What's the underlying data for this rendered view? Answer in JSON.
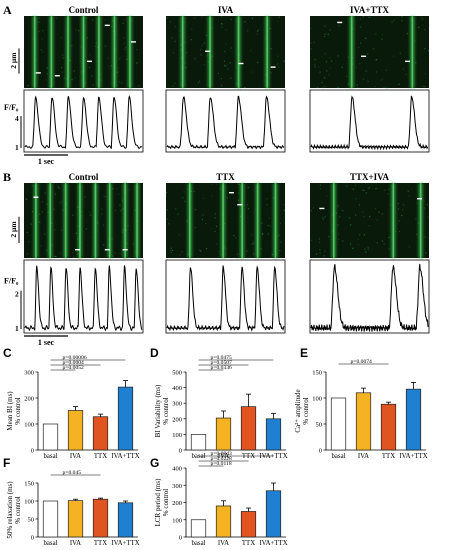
{
  "colors": {
    "green": "#39d353",
    "dark": "#0a1a0a",
    "basal": "#ffffff",
    "iva": "#f5b324",
    "ttx": "#e0541f",
    "ivattx": "#1f7fd0"
  },
  "panelA": {
    "letter": "A",
    "titles": [
      "Control",
      "IVA",
      "IVA+TTX"
    ],
    "scale_label": "2 µm",
    "ylabel": "F/F₀",
    "ytick_top": "4",
    "ytick_bottom": "1",
    "timebar": "1 sec"
  },
  "panelB": {
    "letter": "B",
    "titles": [
      "Control",
      "TTX",
      "TTX+IVA"
    ],
    "scale_label": "2 µm",
    "ylabel": "F/F₀",
    "ytick_top": "2",
    "ytick_bottom": "1",
    "timebar": "1 sec"
  },
  "chart_data": [
    {
      "letter": "C",
      "type": "bar",
      "ylabel": "Mean BI (ms)\n% control",
      "categories": [
        "basal",
        "IVA",
        "TTX",
        "IVA+TTX"
      ],
      "values": [
        100,
        152,
        128,
        242
      ],
      "errors": [
        0,
        15,
        10,
        25
      ],
      "ylim": [
        0,
        300
      ],
      "yticks": [
        0,
        100,
        200,
        300
      ],
      "pvalues": [
        {
          "label": "p=0.00006",
          "from": 0,
          "to": 3
        },
        {
          "label": "p=0.0004",
          "from": 0,
          "to": 2
        },
        {
          "label": "p=0.0052",
          "from": 0,
          "to": 1
        }
      ]
    },
    {
      "letter": "D",
      "type": "bar",
      "ylabel": "BI Variability (ms)\n% control",
      "categories": [
        "basal",
        "IVA",
        "TTX",
        "IVA+TTX"
      ],
      "values": [
        100,
        205,
        278,
        200
      ],
      "errors": [
        0,
        45,
        80,
        35
      ],
      "ylim": [
        0,
        500
      ],
      "yticks": [
        0,
        100,
        200,
        300,
        400,
        500
      ],
      "pvalues": [
        {
          "label": "p=0.0475",
          "from": 0,
          "to": 3
        },
        {
          "label": "p=0.0507",
          "from": 0,
          "to": 2
        },
        {
          "label": "p=0.0336",
          "from": 0,
          "to": 1
        }
      ]
    },
    {
      "letter": "E",
      "type": "bar",
      "ylabel": "Ca²⁺ amplitude\n% control",
      "categories": [
        "basal",
        "IVA",
        "TTX",
        "IVA+TTX"
      ],
      "values": [
        100,
        110,
        88,
        117
      ],
      "errors": [
        0,
        9,
        4,
        13
      ],
      "ylim": [
        0,
        150
      ],
      "yticks": [
        0,
        50,
        100,
        150
      ],
      "pvalues": [
        {
          "label": "p=0.0074",
          "from": 0,
          "to": 2
        }
      ]
    },
    {
      "letter": "F",
      "type": "bar",
      "ylabel": "50% relaxation (ms)\n% control",
      "categories": [
        "basal",
        "IVA",
        "TTX",
        "IVA+TTX"
      ],
      "values": [
        100,
        101,
        105,
        95
      ],
      "errors": [
        0,
        4,
        3,
        5
      ],
      "ylim": [
        0,
        150
      ],
      "yticks": [
        0,
        50,
        100,
        150
      ],
      "pvalues": [
        {
          "label": "p=0.045",
          "from": 0,
          "to": 2
        }
      ]
    },
    {
      "letter": "G",
      "type": "bar",
      "ylabel": "LCR period (ms)\n% control",
      "categories": [
        "basal",
        "IVA",
        "TTX",
        "IVA+TTX"
      ],
      "values": [
        100,
        180,
        148,
        268
      ],
      "errors": [
        0,
        30,
        20,
        45
      ],
      "ylim": [
        0,
        400
      ],
      "yticks": [
        0,
        100,
        200,
        300,
        400
      ],
      "pvalues": [
        {
          "label": "p=0.0043",
          "from": 0,
          "to": 3
        },
        {
          "label": "p=0.0228",
          "from": 0,
          "to": 2
        },
        {
          "label": "p=0.0118",
          "from": 0,
          "to": 1
        }
      ]
    }
  ]
}
